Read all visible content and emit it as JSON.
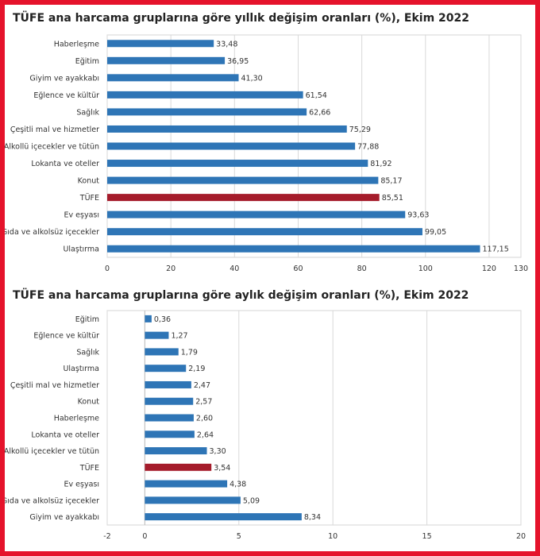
{
  "chart_data": [
    {
      "type": "bar",
      "orientation": "horizontal",
      "title": "TÜFE ana harcama gruplarına göre yıllık değişim oranları (%), Ekim 2022",
      "categories": [
        "Haberleşme",
        "Eğitim",
        "Giyim ve ayakkabı",
        "Eğlence ve kültür",
        "Sağlık",
        "Çeşitli mal ve hizmetler",
        "Alkollü içecekler ve tütün",
        "Lokanta ve oteller",
        "Konut",
        "TÜFE",
        "Ev eşyası",
        "Gıda ve alkolsüz içecekler",
        "Ulaştırma"
      ],
      "values": [
        33.48,
        36.95,
        41.3,
        61.54,
        62.66,
        75.29,
        77.88,
        81.92,
        85.17,
        85.51,
        93.63,
        99.05,
        117.15
      ],
      "value_labels": [
        "33,48",
        "36,95",
        "41,30",
        "61,54",
        "62,66",
        "75,29",
        "77,88",
        "81,92",
        "85,17",
        "85,51",
        "93,63",
        "99,05",
        "117,15"
      ],
      "highlight": "TÜFE",
      "xlim": [
        0,
        130
      ],
      "xticks": [
        0,
        20,
        40,
        60,
        80,
        100,
        120,
        130
      ],
      "grid": true,
      "bar_color": "#2e75b6",
      "highlight_color": "#a51c2b"
    },
    {
      "type": "bar",
      "orientation": "horizontal",
      "title": "TÜFE ana harcama gruplarına göre aylık değişim oranları (%), Ekim 2022",
      "categories": [
        "Eğitim",
        "Eğlence ve kültür",
        "Sağlık",
        "Ulaştırma",
        "Çeşitli mal ve hizmetler",
        "Konut",
        "Haberleşme",
        "Lokanta ve oteller",
        "Alkollü içecekler ve tütün",
        "TÜFE",
        "Ev eşyası",
        "Gıda ve alkolsüz içecekler",
        "Giyim ve ayakkabı"
      ],
      "values": [
        0.36,
        1.27,
        1.79,
        2.19,
        2.47,
        2.57,
        2.6,
        2.64,
        3.3,
        3.54,
        4.38,
        5.09,
        8.34
      ],
      "value_labels": [
        "0,36",
        "1,27",
        "1,79",
        "2,19",
        "2,47",
        "2,57",
        "2,60",
        "2,64",
        "3,30",
        "3,54",
        "4,38",
        "5,09",
        "8,34"
      ],
      "highlight": "TÜFE",
      "xlim": [
        -2,
        20
      ],
      "xticks": [
        -2,
        0,
        5,
        10,
        15,
        20
      ],
      "grid": true,
      "bar_color": "#2e75b6",
      "highlight_color": "#a51c2b"
    }
  ]
}
